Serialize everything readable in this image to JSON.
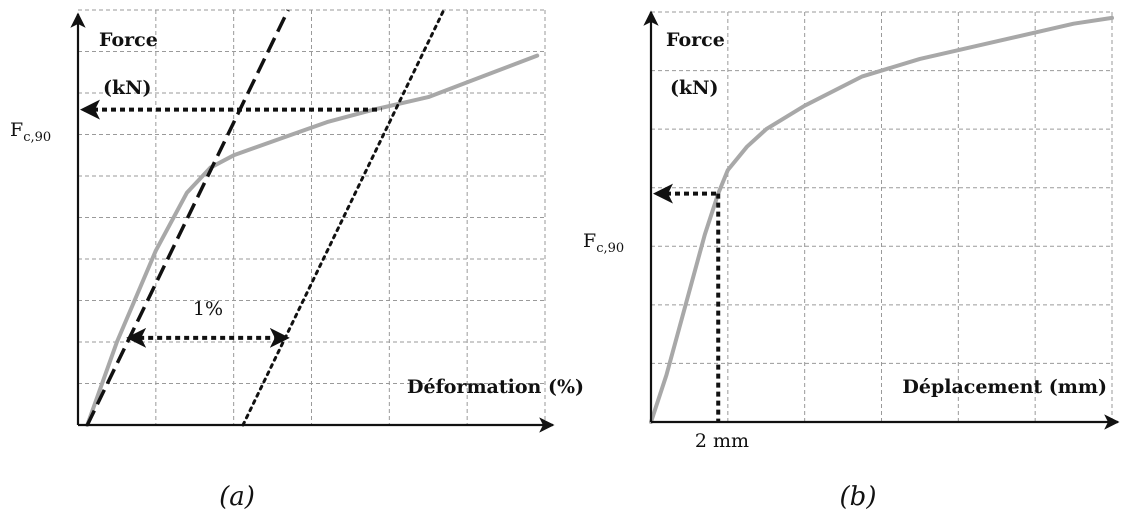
{
  "chart_data": [
    {
      "type": "line",
      "panel": "(a)",
      "caption": "(a)",
      "ylabel": "Force",
      "yunit": "(kN)",
      "xlabel": "Déformation (%)",
      "y_marker_label": "F",
      "y_marker_sub": "c,90",
      "annotation": "1%",
      "xlim": [
        0,
        6
      ],
      "ylim": [
        0,
        10
      ],
      "grid": true,
      "series": [
        {
          "style": "solid-grey",
          "x": [
            0.12,
            0.5,
            1.0,
            1.4,
            1.7,
            2.0,
            2.6,
            3.2,
            3.8,
            4.5,
            5.2,
            5.9
          ],
          "y": [
            0.0,
            2.0,
            4.2,
            5.6,
            6.2,
            6.5,
            6.9,
            7.3,
            7.6,
            7.9,
            8.4,
            8.9
          ]
        },
        {
          "style": "dashed-black",
          "x": [
            0.12,
            2.7
          ],
          "y": [
            0.0,
            10.0
          ]
        },
        {
          "style": "dotted-black",
          "x": [
            2.12,
            4.7
          ],
          "y": [
            0.0,
            10.0
          ]
        }
      ],
      "markers": {
        "fc90_y": 7.6,
        "fc90_x": 3.9,
        "offset_arrow": {
          "y": 2.1,
          "x_from": 0.67,
          "x_to": 2.67
        }
      }
    },
    {
      "type": "line",
      "panel": "(b)",
      "caption": "(b)",
      "ylabel": "Force",
      "yunit": "(kN)",
      "xlabel": "Déplacement (mm)",
      "y_marker_label": "F",
      "y_marker_sub": "c,90",
      "annotation": "2 mm",
      "xlim": [
        0,
        12
      ],
      "ylim": [
        0,
        7
      ],
      "grid": true,
      "series": [
        {
          "style": "solid-grey",
          "x": [
            0.0,
            0.4,
            0.9,
            1.4,
            1.75,
            2.0,
            2.5,
            3.0,
            4.0,
            5.5,
            7.0,
            9.0,
            11.0,
            12.0
          ],
          "y": [
            0.0,
            0.8,
            2.0,
            3.2,
            3.9,
            4.3,
            4.7,
            5.0,
            5.4,
            5.9,
            6.2,
            6.5,
            6.8,
            6.9
          ]
        }
      ],
      "markers": {
        "fc90_y": 3.9,
        "fc90_x": 1.75
      }
    }
  ]
}
